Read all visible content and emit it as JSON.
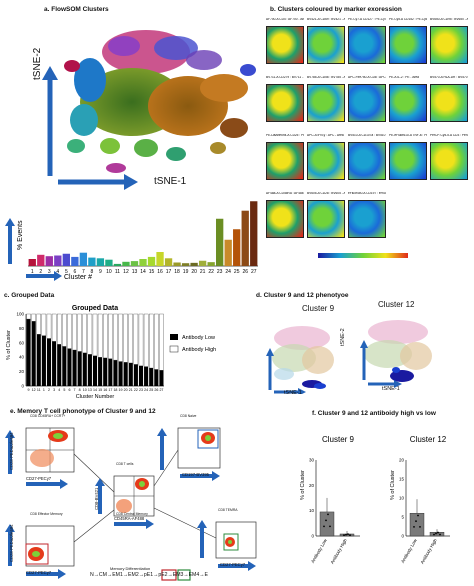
{
  "panels": {
    "a": {
      "title": "a. FlowSOM Clusters",
      "xaxis": "tSNE-1",
      "yaxis": "tSNE-2",
      "hist_ylabel": "% Events",
      "hist_xlabel": "Cluster #"
    },
    "b": {
      "title": "b. Clusters coloured by marker exoression",
      "markers": [
        "AF700-A CD4 : AF700 - Area",
        "BV421-A CD69 : BV421 - Area",
        "PE-Cy7-A CD127 : PE-Cy7 - Area",
        "PE-Cy5-A CD152 : PE-Cy5 - Area",
        "BV650-A CD95 : BV650 - Area",
        "BV711-A CD279 : BV711 - Area",
        "BV785-A CD56 : BV785 - Area",
        "APC-Fire750-A CD8 : APC-Fire750 - Area",
        "PE-A IL-2 : PE - Area",
        "BV570-A HLA-DR : BV570 - Area",
        "PE-Dazzle594-A CD25 : PE-Dazzle594 - Area",
        "APC-A IFN-y : APC - Area",
        "BV510-A CD107a : BV510 - Area",
        "PE-eFluor610-A TNF-a : PE-eFluor610 - Area",
        "PerCP-Cy5-5-A CD3 : PerCP-Cy5-5 - Area",
        "AF488-A CD45RA : AF488 - Area",
        "BV605-A CD28 : BV605 - Area",
        "eFluor450-A CD197 : eFluor450 - Area"
      ]
    },
    "c": {
      "title": "c. Grouped Data",
      "chart_title": "Grouped Data",
      "ylabel": "% of Cluster",
      "xlabel": "Cluster Number",
      "legend": [
        "Antibody Low",
        "Antibody High"
      ]
    },
    "d": {
      "title": "d. Cluster 9 and 12 phenotyoe",
      "left_title": "Cluster 9",
      "right_title": "Cluster 12",
      "xaxis": "tSNE-1",
      "yaxis": "tSNE-2"
    },
    "e": {
      "title": "e. Memory T cell phonotype of Cluster 9 and 12",
      "gates": [
        "CD8 CD45RA+ CCR7+",
        "CD8 Naive",
        "CD8 Effector Memory",
        "CD8 T cells",
        "CD8 TEMRA",
        "CD8 Central Memory"
      ],
      "axes": [
        "CD27-PECy7",
        "CD197-BV395",
        "CD45RA-AF488",
        "CD28-PEDazzle594",
        "CD8-BV421"
      ],
      "formula": "N→CM→EM1→EM2→pE1→pE2→EM3→EM4→E",
      "caption": "Memory Differentiation"
    },
    "f": {
      "title": "f. Cluster 9 and 12 antiboidy high vs low",
      "ylabel": "% of Cluster",
      "left_title": "Cluster 9",
      "right_title": "Cluster 12",
      "xticks": [
        "Antibody Low",
        "Antibody High"
      ]
    }
  },
  "chart_data": [
    {
      "type": "bar",
      "title": "",
      "xlabel": "Cluster #",
      "ylabel": "% Events",
      "categories": [
        "1",
        "2",
        "3",
        "4",
        "5",
        "6",
        "7",
        "8",
        "9",
        "10",
        "11",
        "12",
        "13",
        "14",
        "15",
        "16",
        "17",
        "18",
        "19",
        "20",
        "21",
        "22",
        "23",
        "24",
        "25",
        "26",
        "27"
      ],
      "values": [
        2.0,
        3.2,
        2.8,
        3.0,
        3.5,
        2.6,
        3.8,
        2.4,
        2.2,
        1.8,
        0.6,
        1.2,
        1.4,
        2.0,
        2.6,
        4.0,
        2.2,
        1.0,
        0.8,
        0.9,
        1.5,
        1.1,
        13.5,
        7.5,
        10.5,
        15.8,
        18.5
      ],
      "colors": [
        "#b5123a",
        "#cf2b6a",
        "#9c2fa5",
        "#7b3fc4",
        "#4c4bcf",
        "#3a6ad9",
        "#2b8fd8",
        "#1f9fc8",
        "#1aa8a8",
        "#1fae87",
        "#28a85e",
        "#48b84a",
        "#6cc246",
        "#8fd13b",
        "#a6d92e",
        "#c7d62a",
        "#b3b52a",
        "#9a9a2a",
        "#7f7f28",
        "#6b6b24",
        "#9fae3a",
        "#86a52f",
        "#6b8e23",
        "#c98a2a",
        "#b45309",
        "#8c4a16",
        "#6b2a10"
      ],
      "ylim": [
        0,
        20
      ]
    },
    {
      "type": "bar",
      "title": "Grouped Data",
      "xlabel": "Cluster Number",
      "ylabel": "% of Cluster",
      "categories": [
        "9",
        "12",
        "11",
        "1",
        "2",
        "3",
        "4",
        "5",
        "6",
        "7",
        "8",
        "10",
        "13",
        "14",
        "15",
        "16",
        "17",
        "18",
        "19",
        "20",
        "21",
        "22",
        "23",
        "24",
        "25",
        "26",
        "27"
      ],
      "series": [
        {
          "name": "Antibody Low",
          "values": [
            93,
            90,
            72,
            70,
            66,
            62,
            58,
            55,
            52,
            50,
            48,
            46,
            44,
            42,
            40,
            39,
            38,
            36,
            34,
            33,
            32,
            30,
            28,
            27,
            25,
            23,
            22
          ]
        },
        {
          "name": "Antibody High",
          "values": [
            7,
            10,
            28,
            30,
            34,
            38,
            42,
            45,
            48,
            50,
            52,
            54,
            56,
            58,
            60,
            61,
            62,
            64,
            66,
            67,
            68,
            70,
            72,
            73,
            75,
            77,
            78
          ]
        }
      ],
      "ylim": [
        0,
        100
      ]
    },
    {
      "type": "bar",
      "title": "Cluster 9",
      "xlabel": "",
      "ylabel": "% of Cluster",
      "categories": [
        "Antibody Low",
        "Antibody High"
      ],
      "values": [
        9.5,
        0.8
      ],
      "ylim": [
        0,
        30
      ]
    },
    {
      "type": "bar",
      "title": "Cluster 12",
      "xlabel": "",
      "ylabel": "% of Cluster",
      "categories": [
        "Antibody Low",
        "Antibody High"
      ],
      "values": [
        6.0,
        1.0
      ],
      "ylim": [
        0,
        20
      ]
    }
  ],
  "colors": {
    "arrow_blue": "#2463b8",
    "bar_low": "#000000",
    "bar_high": "#ffffff",
    "bar_f": "#7a7a7a"
  }
}
